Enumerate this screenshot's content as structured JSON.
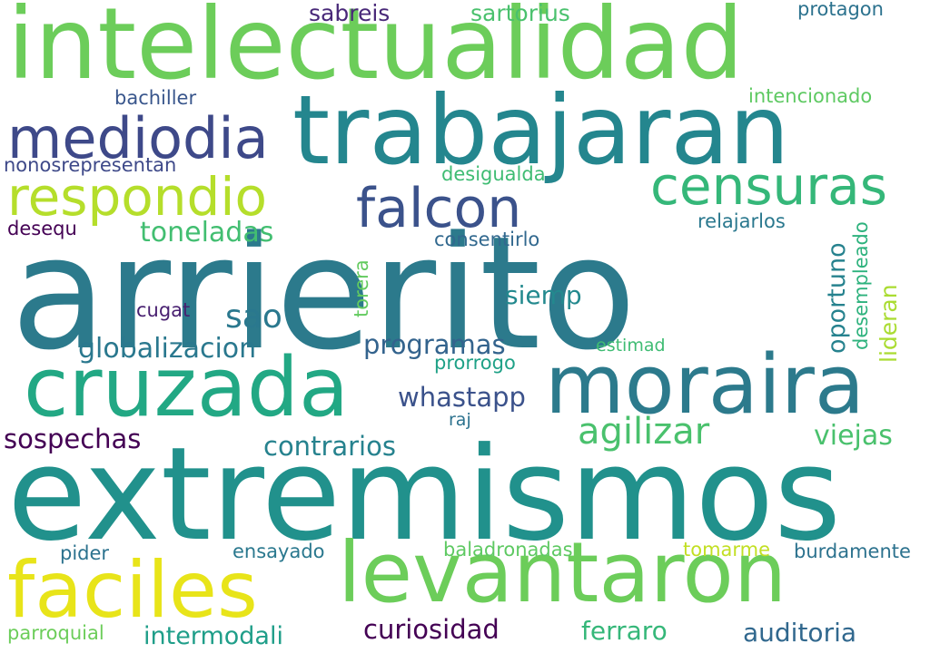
{
  "words": [
    {
      "text": "arrierito",
      "color": "#2c7a8c"
    },
    {
      "text": "extremismos",
      "color": "#21918c"
    },
    {
      "text": "intelectualidad",
      "color": "#6ccd5a"
    },
    {
      "text": "trabajaran",
      "color": "#24868e"
    },
    {
      "text": "levantaron",
      "color": "#6ccd5a"
    },
    {
      "text": "moraira",
      "color": "#2c7a8c"
    },
    {
      "text": "cruzada",
      "color": "#22a884"
    },
    {
      "text": "faciles",
      "color": "#e8e419"
    },
    {
      "text": "mediodia",
      "color": "#3e4989"
    },
    {
      "text": "respondio",
      "color": "#b5de2b"
    },
    {
      "text": "falcon",
      "color": "#3b528b"
    },
    {
      "text": "censuras",
      "color": "#35b779"
    },
    {
      "text": "agilizar",
      "color": "#4ac16d"
    },
    {
      "text": "sao",
      "color": "#2a788e"
    },
    {
      "text": "siemp",
      "color": "#23898e"
    },
    {
      "text": "toneladas",
      "color": "#42be71"
    },
    {
      "text": "globalizacion",
      "color": "#2a788e"
    },
    {
      "text": "programas",
      "color": "#33638d"
    },
    {
      "text": "whastapp",
      "color": "#3b528b"
    },
    {
      "text": "contrarios",
      "color": "#26828e"
    },
    {
      "text": "viejas",
      "color": "#4ac16d"
    },
    {
      "text": "sospechas",
      "color": "#440154"
    },
    {
      "text": "curiosidad",
      "color": "#440154"
    },
    {
      "text": "ferraro",
      "color": "#35b779"
    },
    {
      "text": "auditoria",
      "color": "#31688e"
    },
    {
      "text": "intermodali",
      "color": "#1f9e89"
    },
    {
      "text": "sabreis",
      "color": "#482878"
    },
    {
      "text": "sartorius",
      "color": "#4ac16d"
    },
    {
      "text": "protagon",
      "color": "#2c728e"
    },
    {
      "text": "bachiller",
      "color": "#39568c"
    },
    {
      "text": "intencionado",
      "color": "#5ec962"
    },
    {
      "text": "nonosrepresentan",
      "color": "#3e4989"
    },
    {
      "text": "desigualda",
      "color": "#3fbc73"
    },
    {
      "text": "desequ",
      "color": "#440154"
    },
    {
      "text": "relajarlos",
      "color": "#2a788e"
    },
    {
      "text": "consentirlo",
      "color": "#31688e"
    },
    {
      "text": "oportuno",
      "color": "#26828e"
    },
    {
      "text": "desempleado",
      "color": "#2db27d"
    },
    {
      "text": "lideran",
      "color": "#aadc32"
    },
    {
      "text": "torera",
      "color": "#63cb5f"
    },
    {
      "text": "cugat",
      "color": "#481f70"
    },
    {
      "text": "estimad",
      "color": "#3fbc73"
    },
    {
      "text": "prorrogo",
      "color": "#1fa187"
    },
    {
      "text": "raj",
      "color": "#2c728e"
    },
    {
      "text": "pider",
      "color": "#2c728e"
    },
    {
      "text": "ensayado",
      "color": "#2a788e"
    },
    {
      "text": "baladronadas",
      "color": "#5ec962"
    },
    {
      "text": "tomarme",
      "color": "#c2df23"
    },
    {
      "text": "burdamente",
      "color": "#2c728e"
    },
    {
      "text": "parroquial",
      "color": "#6ccd5a"
    }
  ]
}
